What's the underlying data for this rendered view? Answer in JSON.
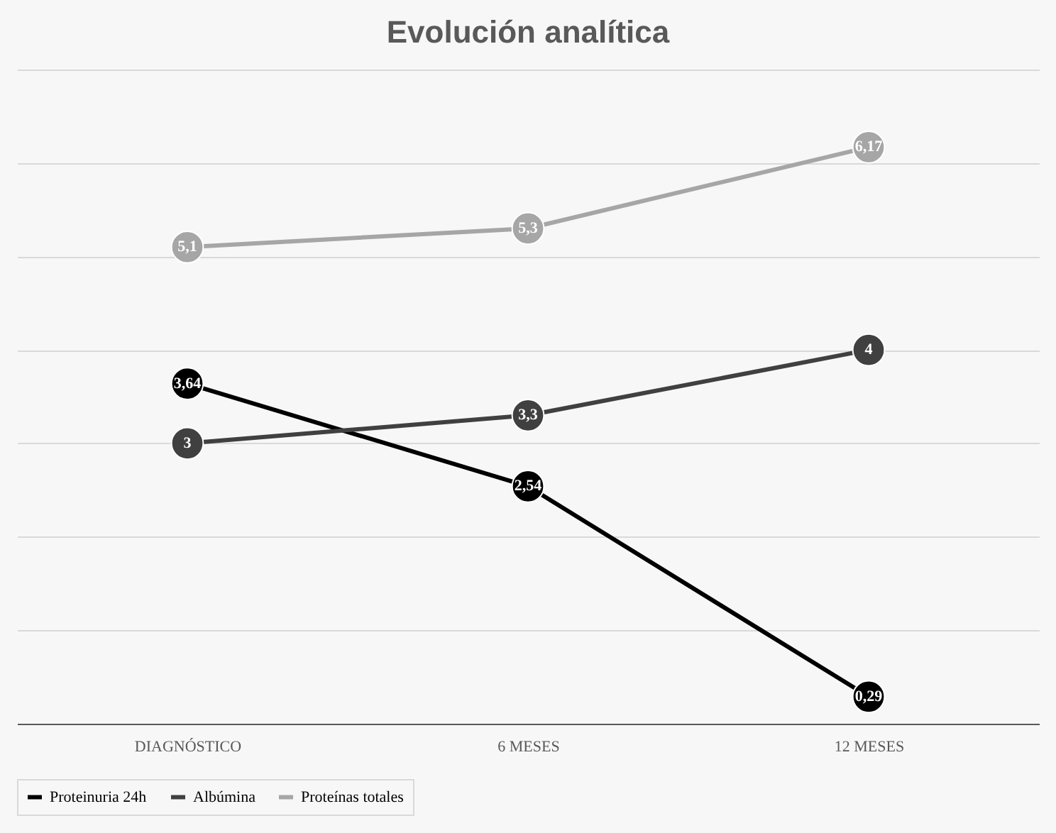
{
  "chart_data": {
    "type": "line",
    "title": "Evolución analítica",
    "categories": [
      "DIAGNÓSTICO",
      "6 MESES",
      "12 MESES"
    ],
    "series": [
      {
        "name": "Proteinuria 24h",
        "color": "#000000",
        "values": [
          3.64,
          2.54,
          0.29
        ],
        "value_labels": [
          "3,64",
          "2,54",
          "0,29"
        ]
      },
      {
        "name": "Albúmina",
        "color": "#404040",
        "values": [
          3,
          3.3,
          4
        ],
        "value_labels": [
          "3",
          "3,3",
          "4"
        ]
      },
      {
        "name": "Proteínas totales",
        "color": "#a6a6a6",
        "values": [
          5.1,
          5.3,
          6.17
        ],
        "value_labels": [
          "5,1",
          "5,3",
          "6,17"
        ]
      }
    ],
    "ylim": [
      0,
      7
    ],
    "yticks": [
      {
        "value": 1,
        "label": null
      },
      {
        "value": 2,
        "label": null
      },
      {
        "value": 3,
        "label": null
      },
      {
        "value": 4,
        "label": null
      },
      {
        "value": 5,
        "label": null
      },
      {
        "value": 6,
        "label": null
      },
      {
        "value": 7,
        "label": null
      }
    ],
    "tick_labels": "x",
    "grid": "y",
    "legend": "bottom",
    "marker": "circle",
    "line_style": "solid"
  }
}
